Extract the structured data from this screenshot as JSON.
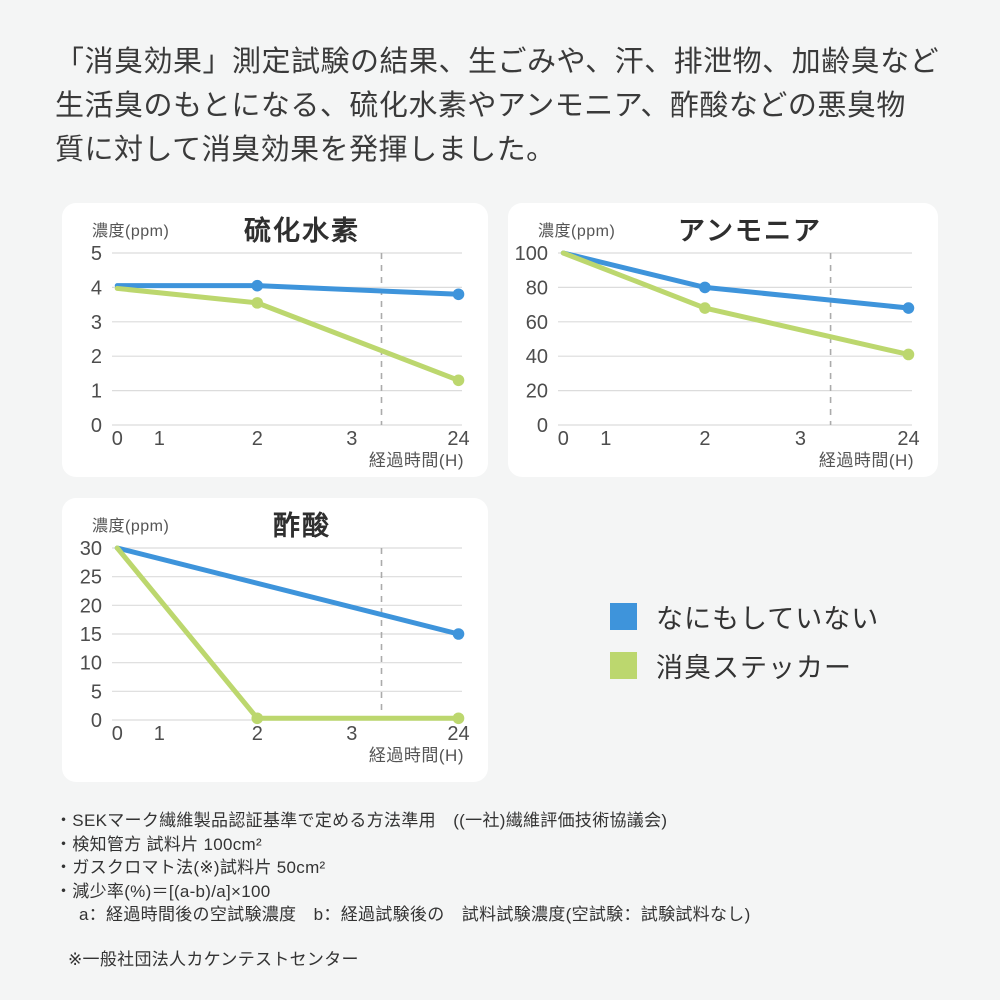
{
  "header": {
    "lines": [
      "「消臭効果」測定試験の結果、生ごみや、汗、排泄物、加齢臭など",
      "生活臭のもとになる、硫化水素やアンモニア、酢酸などの悪臭物",
      "質に対して消臭効果を発揮しました。"
    ]
  },
  "colors": {
    "blue": "#3E94DB",
    "green": "#BCD76E",
    "grid": "#DCDCDC",
    "dash": "#ABABAB",
    "tick_text": "#4D4D4D"
  },
  "legend": {
    "items": [
      {
        "label": "なにもしていない",
        "color": "#3E94DB"
      },
      {
        "label": "消臭ステッカー",
        "color": "#BCD76E"
      }
    ]
  },
  "chart_data": [
    {
      "type": "line",
      "title": "硫化水素",
      "ylabel": "濃度(ppm)",
      "xlabel": "経過時間(H)",
      "categories": [
        "0",
        "1",
        "2",
        "3",
        "24"
      ],
      "yticks": [
        0,
        1,
        2,
        3,
        4,
        5
      ],
      "ylim": [
        0,
        5
      ],
      "x_positions": {
        "0": 0.015,
        "1": 0.135,
        "2": 0.415,
        "3": 0.685,
        "24": 0.99
      },
      "dash_x": 0.77,
      "series": [
        {
          "name": "なにもしていない",
          "color": "#3E94DB",
          "points": [
            {
              "x": "0",
              "y": 4.05,
              "marker": false
            },
            {
              "x": "2",
              "y": 4.05,
              "marker": true
            },
            {
              "x": "24",
              "y": 3.8,
              "marker": true
            }
          ]
        },
        {
          "name": "消臭ステッカー",
          "color": "#BCD76E",
          "points": [
            {
              "x": "0",
              "y": 3.97,
              "marker": false
            },
            {
              "x": "2",
              "y": 3.55,
              "marker": true
            },
            {
              "x": "24",
              "y": 1.3,
              "marker": true
            }
          ]
        }
      ]
    },
    {
      "type": "line",
      "title": "アンモニア",
      "ylabel": "濃度(ppm)",
      "xlabel": "経過時間(H)",
      "categories": [
        "0",
        "1",
        "2",
        "3",
        "24"
      ],
      "yticks": [
        0,
        20,
        40,
        60,
        80,
        100
      ],
      "ylim": [
        0,
        100
      ],
      "x_positions": {
        "0": 0.015,
        "1": 0.135,
        "2": 0.415,
        "3": 0.685,
        "24": 0.99
      },
      "dash_x": 0.77,
      "series": [
        {
          "name": "なにもしていない",
          "color": "#3E94DB",
          "points": [
            {
              "x": "0",
              "y": 100,
              "marker": false
            },
            {
              "x": "2",
              "y": 80,
              "marker": true
            },
            {
              "x": "24",
              "y": 68,
              "marker": true
            }
          ]
        },
        {
          "name": "消臭ステッカー",
          "color": "#BCD76E",
          "points": [
            {
              "x": "0",
              "y": 100,
              "marker": false
            },
            {
              "x": "2",
              "y": 68,
              "marker": true
            },
            {
              "x": "24",
              "y": 41,
              "marker": true
            }
          ]
        }
      ]
    },
    {
      "type": "line",
      "title": "酢酸",
      "ylabel": "濃度(ppm)",
      "xlabel": "経過時間(H)",
      "categories": [
        "0",
        "1",
        "2",
        "3",
        "24"
      ],
      "yticks": [
        0,
        5,
        10,
        15,
        20,
        25,
        30
      ],
      "ylim": [
        0,
        30
      ],
      "x_positions": {
        "0": 0.015,
        "1": 0.135,
        "2": 0.415,
        "3": 0.685,
        "24": 0.99
      },
      "dash_x": 0.77,
      "series": [
        {
          "name": "なにもしていない",
          "color": "#3E94DB",
          "points": [
            {
              "x": "0",
              "y": 30,
              "marker": false
            },
            {
              "x": "24",
              "y": 15,
              "marker": true
            }
          ]
        },
        {
          "name": "消臭ステッカー",
          "color": "#BCD76E",
          "points": [
            {
              "x": "0",
              "y": 30,
              "marker": false
            },
            {
              "x": "2",
              "y": 0.3,
              "marker": true
            },
            {
              "x": "24",
              "y": 0.3,
              "marker": true
            }
          ]
        }
      ]
    }
  ],
  "footnotes": {
    "bullets": [
      "・SEKマーク繊維製品認証基準で定める方法準用　((一社)繊維評価技術協議会)",
      "・検知管方 試料片 100cm²",
      "・ガスクロマト法(※)試料片 50cm²",
      "・減少率(%)＝[(a-b)/a]×100"
    ],
    "sub": "a：経過時間後の空試験濃度　b：経過試験後の　試料試験濃度(空試験：試験試料なし)",
    "note": "※一般社団法人カケンテストセンター"
  }
}
